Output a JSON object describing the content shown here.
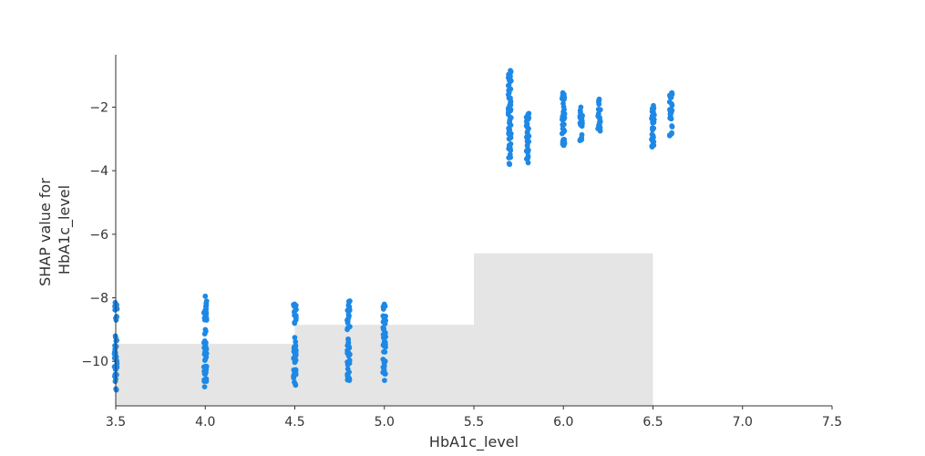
{
  "chart_data": {
    "type": "scatter",
    "title": "",
    "xlabel": "HbA1c_level",
    "ylabel_lines": [
      "SHAP value for",
      "HbA1c_level"
    ],
    "xlim": [
      3.5,
      7.5
    ],
    "ylim": [
      -11.4,
      -0.35
    ],
    "x_ticks": [
      3.5,
      4.0,
      4.5,
      5.0,
      5.5,
      6.0,
      6.5,
      7.0,
      7.5
    ],
    "x_tick_labels": [
      "3.5",
      "4.0",
      "4.5",
      "5.0",
      "5.5",
      "6.0",
      "6.5",
      "7.0",
      "7.5"
    ],
    "y_ticks": [
      -2,
      -4,
      -6,
      -8,
      -10
    ],
    "y_tick_labels": [
      "−2",
      "−4",
      "−6",
      "−8",
      "−10"
    ],
    "point_color": "#1e88e5",
    "histogram_color": "#e5e5e5",
    "histogram_bins": [
      {
        "x0": 3.5,
        "x1": 4.5,
        "top": -9.45
      },
      {
        "x0": 4.5,
        "x1": 5.5,
        "top": -8.85
      },
      {
        "x0": 5.5,
        "x1": 6.5,
        "top": -6.6
      }
    ],
    "clusters": [
      {
        "x": 3.5,
        "segments": [
          [
            -8.7,
            -8.15
          ],
          [
            -10.9,
            -9.2
          ]
        ]
      },
      {
        "x": 4.0,
        "segments": [
          [
            -8.7,
            -7.95
          ],
          [
            -10.8,
            -9.0
          ]
        ]
      },
      {
        "x": 4.5,
        "segments": [
          [
            -8.8,
            -8.2
          ],
          [
            -10.75,
            -9.25
          ]
        ]
      },
      {
        "x": 4.8,
        "segments": [
          [
            -9.0,
            -8.1
          ],
          [
            -10.6,
            -9.3
          ]
        ]
      },
      {
        "x": 5.0,
        "segments": [
          [
            -9.0,
            -8.2
          ],
          [
            -10.6,
            -9.1
          ]
        ]
      },
      {
        "x": 5.7,
        "segments": [
          [
            -3.8,
            -0.85
          ]
        ]
      },
      {
        "x": 5.8,
        "segments": [
          [
            -3.75,
            -2.2
          ]
        ]
      },
      {
        "x": 6.0,
        "segments": [
          [
            -3.2,
            -1.55
          ]
        ]
      },
      {
        "x": 6.1,
        "segments": [
          [
            -3.05,
            -2.0
          ]
        ]
      },
      {
        "x": 6.2,
        "segments": [
          [
            -2.75,
            -1.75
          ]
        ]
      },
      {
        "x": 6.5,
        "segments": [
          [
            -3.25,
            -1.95
          ]
        ]
      },
      {
        "x": 6.6,
        "segments": [
          [
            -2.9,
            -1.55
          ]
        ]
      }
    ]
  }
}
